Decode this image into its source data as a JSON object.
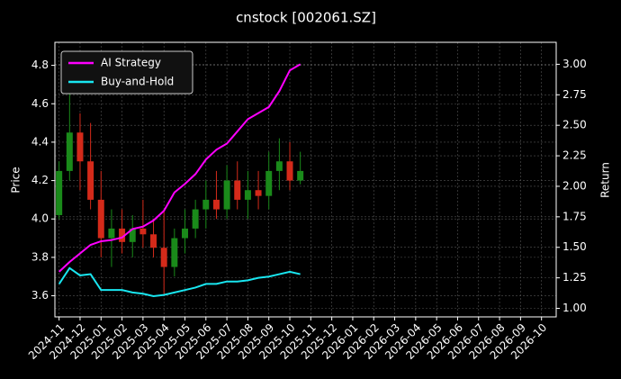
{
  "chart_data": {
    "type": "candlestick",
    "title": "cnstock [002061.SZ]",
    "ylabel": "Price",
    "y2label": "Return",
    "x": [
      0,
      0.5,
      1,
      1.5,
      2,
      2.5,
      3,
      3.5,
      4,
      4.5,
      5,
      5.5,
      6,
      6.5,
      7,
      7.5,
      8,
      8.5,
      9,
      9.5,
      10,
      10.5,
      11,
      11.5
    ],
    "open": [
      4.02,
      4.25,
      4.45,
      4.3,
      4.1,
      3.9,
      3.95,
      3.88,
      3.95,
      3.92,
      3.85,
      3.75,
      3.9,
      3.95,
      4.05,
      4.1,
      4.05,
      4.2,
      4.1,
      4.15,
      4.12,
      4.25,
      4.3,
      4.2
    ],
    "high": [
      4.3,
      4.68,
      4.55,
      4.5,
      4.25,
      4.05,
      4.05,
      4.02,
      4.1,
      4.0,
      4.05,
      3.95,
      4.05,
      4.1,
      4.2,
      4.25,
      4.28,
      4.3,
      4.25,
      4.25,
      4.35,
      4.42,
      4.4,
      4.35
    ],
    "low": [
      4.0,
      4.2,
      4.15,
      4.05,
      3.8,
      3.75,
      3.82,
      3.8,
      3.85,
      3.8,
      3.6,
      3.7,
      3.82,
      3.9,
      3.95,
      4.0,
      4.0,
      4.05,
      4.0,
      4.05,
      4.05,
      4.15,
      4.15,
      4.18
    ],
    "close": [
      4.25,
      4.45,
      4.3,
      4.1,
      3.9,
      3.95,
      3.88,
      3.95,
      3.92,
      3.85,
      3.75,
      3.9,
      3.95,
      4.05,
      4.1,
      4.05,
      4.2,
      4.1,
      4.15,
      4.12,
      4.25,
      4.3,
      4.2,
      4.25
    ],
    "up_color": "#1a8a1a",
    "down_color": "#d42a1a",
    "series": [
      {
        "name": "AI Strategy",
        "color": "#ff00ff",
        "axis": "y2",
        "values": [
          1.3,
          1.38,
          1.45,
          1.52,
          1.55,
          1.56,
          1.58,
          1.65,
          1.67,
          1.72,
          1.8,
          1.95,
          2.02,
          2.1,
          2.22,
          2.3,
          2.35,
          2.45,
          2.55,
          2.6,
          2.65,
          2.78,
          2.95,
          3.0
        ]
      },
      {
        "name": "Buy-and-Hold",
        "color": "#19e6f0",
        "axis": "y2",
        "values": [
          1.2,
          1.33,
          1.27,
          1.28,
          1.15,
          1.15,
          1.15,
          1.13,
          1.12,
          1.1,
          1.11,
          1.13,
          1.15,
          1.17,
          1.2,
          1.2,
          1.22,
          1.22,
          1.23,
          1.25,
          1.26,
          1.28,
          1.3,
          1.28
        ]
      }
    ],
    "xlim": [
      -0.2,
      23.7
    ],
    "xticks": [
      {
        "value": 0,
        "label": "2024-11"
      },
      {
        "value": 1,
        "label": "2024-12"
      },
      {
        "value": 2,
        "label": "2025-01"
      },
      {
        "value": 3,
        "label": "2025-02"
      },
      {
        "value": 4,
        "label": "2025-03"
      },
      {
        "value": 5,
        "label": "2025-04"
      },
      {
        "value": 6,
        "label": "2025-05"
      },
      {
        "value": 7,
        "label": "2025-06"
      },
      {
        "value": 8,
        "label": "2025-07"
      },
      {
        "value": 9,
        "label": "2025-08"
      },
      {
        "value": 10,
        "label": "2025-09"
      },
      {
        "value": 11,
        "label": "2025-10"
      },
      {
        "value": 12,
        "label": "2025-11"
      },
      {
        "value": 13,
        "label": "2025-12"
      },
      {
        "value": 14,
        "label": "2026-01"
      },
      {
        "value": 15,
        "label": "2026-02"
      },
      {
        "value": 16,
        "label": "2026-03"
      },
      {
        "value": 17,
        "label": "2026-04"
      },
      {
        "value": 18,
        "label": "2026-05"
      },
      {
        "value": 19,
        "label": "2026-06"
      },
      {
        "value": 20,
        "label": "2026-07"
      },
      {
        "value": 21,
        "label": "2026-08"
      },
      {
        "value": 22,
        "label": "2026-09"
      },
      {
        "value": 23,
        "label": "2026-10"
      }
    ],
    "ylim": [
      3.49,
      4.92
    ],
    "yticks": [
      3.6,
      3.8,
      {
        "value": 4,
        "label": "4.0"
      },
      4.2,
      4.4,
      4.6,
      4.8
    ],
    "y2lim": [
      0.93,
      3.18
    ],
    "y2ticks": [
      {
        "value": 1,
        "label": "1.00"
      },
      {
        "value": 1.25,
        "label": "1.25"
      },
      {
        "value": 1.5,
        "label": "1.50"
      },
      {
        "value": 1.75,
        "label": "1.75"
      },
      {
        "value": 2,
        "label": "2.00"
      },
      {
        "value": 2.25,
        "label": "2.25"
      },
      {
        "value": 2.5,
        "label": "2.50"
      },
      {
        "value": 2.75,
        "label": "2.75"
      },
      {
        "value": 3,
        "label": "3.00"
      }
    ],
    "grid": true,
    "legend": "upper left"
  }
}
